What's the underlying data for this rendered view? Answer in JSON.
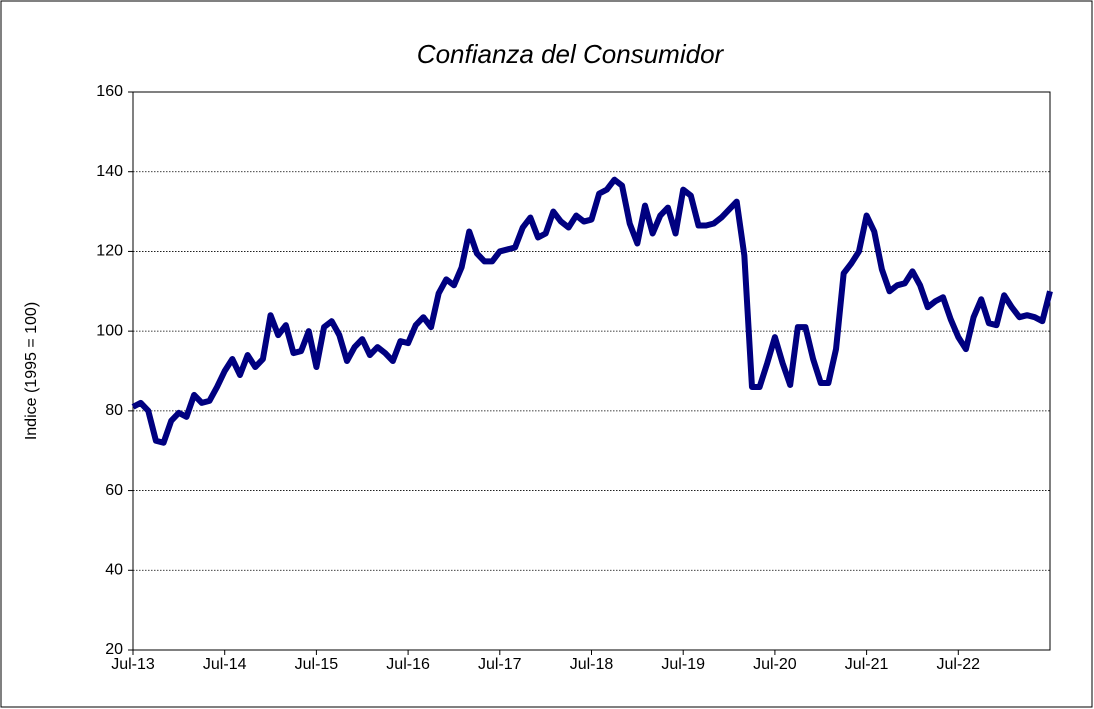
{
  "chart_data": {
    "type": "line",
    "title": "Confianza del Consumidor",
    "y_label": "Indice (1995 = 100)",
    "categories": [
      "Jul-13",
      null,
      null,
      null,
      null,
      null,
      null,
      null,
      null,
      null,
      null,
      null,
      "Jul-14",
      null,
      null,
      null,
      null,
      null,
      null,
      null,
      null,
      null,
      null,
      null,
      "Jul-15",
      null,
      null,
      null,
      null,
      null,
      null,
      null,
      null,
      null,
      null,
      null,
      "Jul-16",
      null,
      null,
      null,
      null,
      null,
      null,
      null,
      null,
      null,
      null,
      null,
      "Jul-17",
      null,
      null,
      null,
      null,
      null,
      null,
      null,
      null,
      null,
      null,
      null,
      "Jul-18",
      null,
      null,
      null,
      null,
      null,
      null,
      null,
      null,
      null,
      null,
      null,
      "Jul-19",
      null,
      null,
      null,
      null,
      null,
      null,
      null,
      null,
      null,
      null,
      null,
      "Jul-20",
      null,
      null,
      null,
      null,
      null,
      null,
      null,
      null,
      null,
      null,
      null,
      "Jul-21",
      null,
      null,
      null,
      null,
      null,
      null,
      null,
      null,
      null,
      null,
      null,
      "Jul-22",
      null,
      null,
      null,
      null,
      null,
      null,
      null,
      null,
      null,
      null,
      null,
      null
    ],
    "series": [
      {
        "name": "Confianza del Consumidor",
        "color": "#000080",
        "values": [
          81,
          82,
          80,
          72.5,
          72,
          77.5,
          79.5,
          78.5,
          84,
          82,
          82.5,
          86,
          90,
          93,
          89,
          94,
          91,
          93,
          104,
          99,
          101.5,
          94.5,
          95,
          100,
          91,
          101,
          102.5,
          99,
          92.5,
          96,
          98,
          94,
          96,
          94.5,
          92.5,
          97.5,
          97,
          101.5,
          103.5,
          101,
          109.5,
          113,
          111.5,
          116,
          125,
          119.5,
          117.5,
          117.5,
          120,
          120.5,
          121,
          126,
          128.5,
          123.5,
          124.5,
          130,
          127.5,
          126,
          129,
          127.5,
          128,
          134.5,
          135.5,
          138,
          136.5,
          127,
          122,
          131.5,
          124.5,
          129,
          131,
          124.5,
          135.5,
          134,
          126.5,
          126.5,
          127,
          128.5,
          130.5,
          132.5,
          119,
          86,
          86,
          92,
          98.5,
          92,
          86.5,
          101,
          101,
          93,
          87,
          87,
          95.5,
          114.5,
          117,
          120,
          129,
          125,
          115.5,
          110,
          111.5,
          112,
          115,
          111.5,
          106,
          107.5,
          108.5,
          103,
          98.5,
          95.5,
          103.5,
          108,
          102,
          101.5,
          109,
          106,
          103.5,
          104,
          103.5,
          102.5,
          110
        ]
      }
    ],
    "ylim": [
      20,
      160
    ],
    "yticks": [
      20,
      40,
      60,
      80,
      100,
      120,
      140,
      160
    ],
    "grid": true
  }
}
